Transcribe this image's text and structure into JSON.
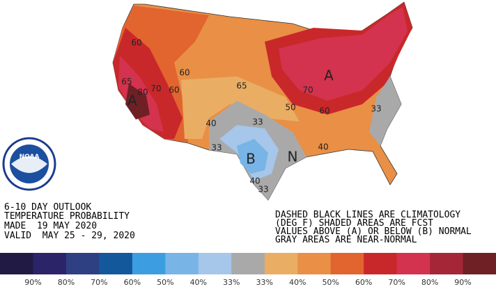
{
  "map": {
    "outlook_lines": [
      "6-10 DAY OUTLOOK",
      "TEMPERATURE PROBABILITY",
      "MADE  19 MAY 2020",
      "VALID  MAY 25 - 29, 2020"
    ],
    "notes": [
      "DASHED BLACK LINES ARE CLIMATOLOGY",
      "(DEG F) SHADED AREAS ARE FCST",
      "VALUES ABOVE (A) OR BELOW (B) NORMAL",
      "GRAY AREAS ARE NEAR-NORMAL"
    ],
    "contour_labels": [
      "60",
      "65",
      "80",
      "70",
      "60",
      "60",
      "A",
      "65",
      "70",
      "A",
      "50",
      "60",
      "33",
      "40",
      "33",
      "N",
      "33",
      "B",
      "40",
      "40",
      "33"
    ],
    "logo_text": "NOAA",
    "legend": {
      "colors": [
        "#201a45",
        "#2c2468",
        "#2e3f82",
        "#14589c",
        "#3c9ee0",
        "#78b4e6",
        "#a6c6ea",
        "#a9a9a9",
        "#e9ae63",
        "#e98f46",
        "#e2642f",
        "#c9282a",
        "#d3334e",
        "#a52637",
        "#6e2025"
      ],
      "labels": [
        "90%",
        "80%",
        "70%",
        "60%",
        "50%",
        "40%",
        "33%",
        "33%",
        "40%",
        "50%",
        "60%",
        "70%",
        "80%",
        "90%"
      ]
    }
  }
}
